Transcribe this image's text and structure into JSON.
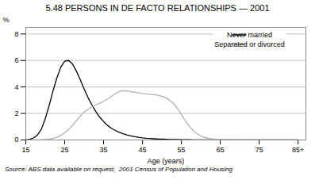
{
  "chart_data": {
    "type": "line",
    "title": "5.48   PERSONS IN DE FACTO RELATIONSHIPS — 2001",
    "xlabel": "Age (years)",
    "ylabel": "%",
    "source": "Source: ABS data available on request,  2001 Census of Population and Housing",
    "xlim": [
      15,
      87
    ],
    "ylim": [
      0,
      8.5
    ],
    "xticks": [
      15,
      25,
      35,
      45,
      55,
      65,
      75,
      {
        "value": 85,
        "label": "85+"
      }
    ],
    "yticks": [
      0,
      2,
      4,
      6,
      8
    ],
    "grid": true,
    "legend": "upper right",
    "series": [
      {
        "name": "Never married",
        "color": "#000000",
        "x": [
          15,
          16,
          17,
          18,
          19,
          20,
          21,
          22,
          23,
          24,
          25,
          26,
          27,
          28,
          29,
          30,
          31,
          32,
          33,
          34,
          35,
          36,
          37,
          38,
          39,
          40,
          41,
          42,
          43,
          44,
          45,
          46,
          47,
          48,
          49,
          50,
          51,
          52,
          53,
          54,
          55,
          56,
          57,
          58,
          59,
          60,
          61,
          62,
          63,
          64,
          65,
          70,
          75,
          80,
          85
        ],
        "values": [
          0.01,
          0.05,
          0.15,
          0.38,
          0.8,
          1.6,
          2.6,
          3.7,
          4.7,
          5.5,
          5.95,
          6.0,
          5.75,
          5.2,
          4.55,
          3.85,
          3.2,
          2.65,
          2.15,
          1.72,
          1.38,
          1.1,
          0.88,
          0.72,
          0.58,
          0.47,
          0.38,
          0.31,
          0.25,
          0.2,
          0.16,
          0.13,
          0.11,
          0.09,
          0.07,
          0.06,
          0.05,
          0.04,
          0.035,
          0.03,
          0.025,
          0.02,
          0.016,
          0.013,
          0.01,
          0.008,
          0.006,
          0.005,
          0.004,
          0.003,
          0.002,
          0.001,
          0.001,
          0.0,
          0.0
        ]
      },
      {
        "name": "Separated or divorced",
        "color": "#b0b0b0",
        "x": [
          15,
          16,
          17,
          18,
          19,
          20,
          21,
          22,
          23,
          24,
          25,
          26,
          27,
          28,
          29,
          30,
          31,
          32,
          33,
          34,
          35,
          36,
          37,
          38,
          39,
          40,
          41,
          42,
          43,
          44,
          45,
          46,
          47,
          48,
          49,
          50,
          51,
          52,
          53,
          54,
          55,
          56,
          57,
          58,
          59,
          60,
          61,
          62,
          63,
          64,
          65,
          66,
          67,
          68,
          70,
          72,
          75,
          80,
          85
        ],
        "values": [
          0.0,
          0.0,
          0.0,
          0.01,
          0.02,
          0.04,
          0.07,
          0.12,
          0.2,
          0.35,
          0.55,
          0.8,
          1.1,
          1.45,
          1.8,
          2.1,
          2.32,
          2.5,
          2.65,
          2.78,
          2.92,
          3.08,
          3.28,
          3.5,
          3.65,
          3.72,
          3.7,
          3.65,
          3.6,
          3.55,
          3.5,
          3.47,
          3.45,
          3.42,
          3.38,
          3.3,
          3.18,
          3.0,
          2.75,
          2.38,
          1.92,
          1.45,
          1.05,
          0.72,
          0.48,
          0.3,
          0.19,
          0.12,
          0.08,
          0.05,
          0.035,
          0.025,
          0.018,
          0.012,
          0.008,
          0.005,
          0.003,
          0.001,
          0.0
        ]
      }
    ]
  }
}
